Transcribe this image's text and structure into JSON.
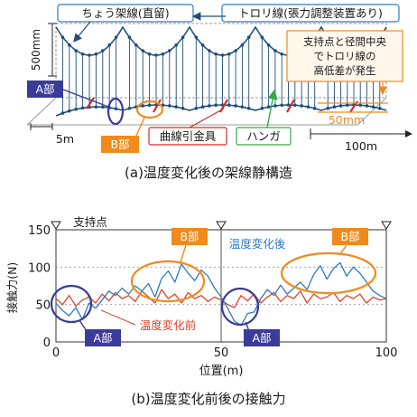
{
  "top_figure": {
    "caption": "(a)温度変化後の架線静構造",
    "labels": {
      "messenger": "ちょう架線(直留)",
      "contact": "トロリ線(張力調整装置あり)",
      "part_a": "A部",
      "part_b": "B部",
      "curve_pull": "曲線引金具",
      "hanger": "ハンガ",
      "height_500": "500mm",
      "len_5m": "5m",
      "len_100m": "100m",
      "diff_50": "50mm",
      "note_line1": "支持点と径間中央",
      "note_line2": "でトロリ線の",
      "note_line3": "高低差が発生"
    },
    "colors": {
      "cable": "#1f4e79",
      "hanger": "#1f4e79",
      "curve_pull": "#d62828",
      "hanger_arrow": "#3aa64a",
      "highlight": "#f08a1c",
      "part_a_ring": "#3b3b9a",
      "label_box_border": "#2b7bbf"
    }
  },
  "bottom_figure": {
    "caption": "(b)温度変化前後の接触力",
    "labels": {
      "support": "支持点",
      "after": "温度変化後",
      "before": "温度変化前",
      "part_a1": "A部",
      "part_a2": "A部",
      "part_b1": "B部",
      "part_b2": "B部"
    },
    "chart_data": {
      "type": "line",
      "xlabel": "位置(m)",
      "ylabel": "接触力(N)",
      "xlim": [
        0,
        100
      ],
      "ylim": [
        0,
        150
      ],
      "xticks": [
        0,
        50,
        100
      ],
      "yticks": [
        0,
        50,
        100,
        150
      ],
      "support_positions": [
        0,
        50,
        100
      ],
      "series": [
        {
          "name": "温度変化後",
          "color": "#2e7bbf",
          "x": [
            0,
            2,
            4,
            6,
            8,
            10,
            12,
            14,
            16,
            18,
            20,
            22,
            24,
            26,
            28,
            30,
            32,
            34,
            36,
            38,
            40,
            42,
            44,
            46,
            48,
            50,
            52,
            54,
            56,
            58,
            60,
            62,
            64,
            66,
            68,
            70,
            72,
            74,
            76,
            78,
            80,
            82,
            84,
            86,
            88,
            90,
            92,
            94,
            96,
            98,
            100
          ],
          "y": [
            52,
            42,
            35,
            46,
            30,
            52,
            45,
            56,
            68,
            62,
            72,
            64,
            75,
            68,
            78,
            60,
            85,
            95,
            80,
            104,
            92,
            82,
            96,
            88,
            72,
            60,
            45,
            28,
            22,
            38,
            40,
            58,
            70,
            62,
            76,
            64,
            72,
            80,
            70,
            90,
            102,
            84,
            98,
            106,
            88,
            100,
            92,
            80,
            68,
            62,
            58
          ]
        },
        {
          "name": "温度変化前",
          "color": "#e0412a",
          "x": [
            0,
            2,
            4,
            6,
            8,
            10,
            12,
            14,
            16,
            18,
            20,
            22,
            24,
            26,
            28,
            30,
            32,
            34,
            36,
            38,
            40,
            42,
            44,
            46,
            48,
            50,
            52,
            54,
            56,
            58,
            60,
            62,
            64,
            66,
            68,
            70,
            72,
            74,
            76,
            78,
            80,
            82,
            84,
            86,
            88,
            90,
            92,
            94,
            96,
            98,
            100
          ],
          "y": [
            58,
            50,
            62,
            48,
            56,
            60,
            52,
            64,
            55,
            66,
            58,
            62,
            54,
            68,
            60,
            52,
            70,
            58,
            64,
            52,
            66,
            58,
            62,
            54,
            60,
            56,
            50,
            46,
            62,
            55,
            64,
            52,
            60,
            66,
            54,
            62,
            58,
            68,
            52,
            64,
            58,
            60,
            66,
            54,
            62,
            58,
            64,
            52,
            60,
            56,
            58
          ]
        }
      ]
    }
  }
}
